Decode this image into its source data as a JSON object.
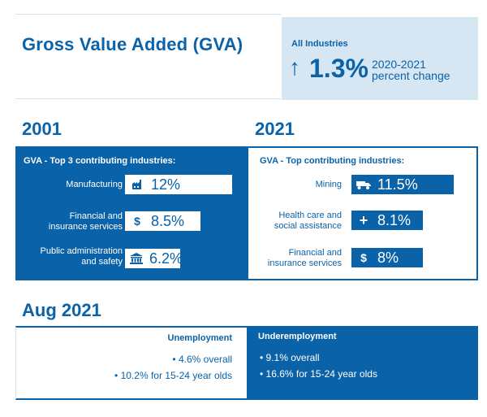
{
  "header": {
    "title": "Gross Value Added (GVA)",
    "hero": {
      "label": "All Industries",
      "arrow": "↑",
      "value": "1.3%",
      "desc_line1": "2020-2021",
      "desc_line2": "percent change"
    }
  },
  "section_2001": {
    "year": "2001",
    "panel_title": "GVA - Top 3 contributing industries:",
    "rows": [
      {
        "label_line1": "Manufacturing",
        "label_line2": "",
        "icon": "factory-icon",
        "value": "12%",
        "fill": 0.975
      },
      {
        "label_line1": "Financial and",
        "label_line2": "insurance services",
        "icon": "dollar-icon",
        "value": "8.5%",
        "fill": 0.69
      },
      {
        "label_line1": "Public administration",
        "label_line2": "and safety",
        "icon": "government-building-icon",
        "value": "6.2%",
        "fill": 0.5
      }
    ]
  },
  "section_2021": {
    "year": "2021",
    "panel_title": "GVA - Top contributing industries:",
    "rows": [
      {
        "label_line1": "Mining",
        "label_line2": "",
        "icon": "mining-truck-icon",
        "value": "11.5%",
        "fill": 0.93
      },
      {
        "label_line1": "Health care and",
        "label_line2": "social assistance",
        "icon": "plus-icon",
        "value": "8.1%",
        "fill": 0.65
      },
      {
        "label_line1": "Financial and",
        "label_line2": "insurance services",
        "icon": "dollar-icon",
        "value": "8%",
        "fill": 0.65
      }
    ]
  },
  "aug": {
    "heading": "Aug 2021",
    "unemployment": {
      "title": "Unemployment",
      "bullet1": "• 4.6% overall",
      "bullet2": "• 10.2% for 15-24 year olds"
    },
    "underemployment": {
      "title": "Underemployment",
      "bullet1": "• 9.1% overall",
      "bullet2": "• 16.6% for 15-24 year olds"
    }
  },
  "colors": {
    "brand_blue": "#0a62a9",
    "hero_bg": "#d6e6f3"
  }
}
